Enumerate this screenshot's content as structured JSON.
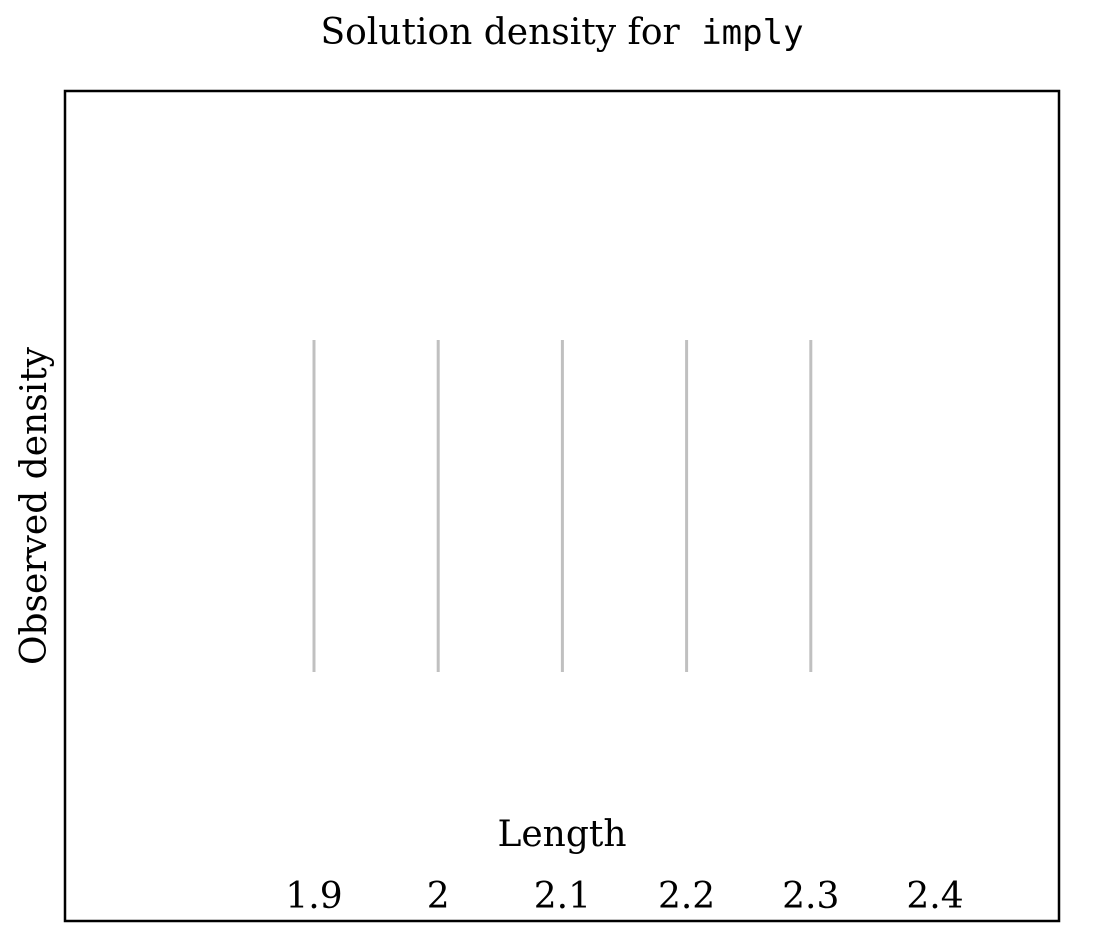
{
  "chart_data": {
    "type": "line",
    "title_prefix": "Solution density for",
    "title_code": "imply",
    "xlabel": "Length",
    "ylabel": "Observed density",
    "xlim": [
      1.7,
      2.4
    ],
    "ylim": [
      0,
      1
    ],
    "x_ticks": [
      1.9,
      2.0,
      2.1,
      2.2,
      2.3,
      2.4
    ],
    "x_tick_labels": [
      "1.9",
      "2",
      "2.1",
      "2.2",
      "2.3",
      "2.4"
    ],
    "vlines": [
      {
        "x": 1.9,
        "y0": 0.3,
        "y1": 0.7
      },
      {
        "x": 2.0,
        "y0": 0.3,
        "y1": 0.7
      },
      {
        "x": 2.1,
        "y0": 0.3,
        "y1": 0.7
      },
      {
        "x": 2.2,
        "y0": 0.3,
        "y1": 0.7
      },
      {
        "x": 2.3,
        "y0": 0.3,
        "y1": 0.7
      }
    ],
    "line_color": "#c0c0c0",
    "frame_color": "#000000",
    "grid": false
  }
}
